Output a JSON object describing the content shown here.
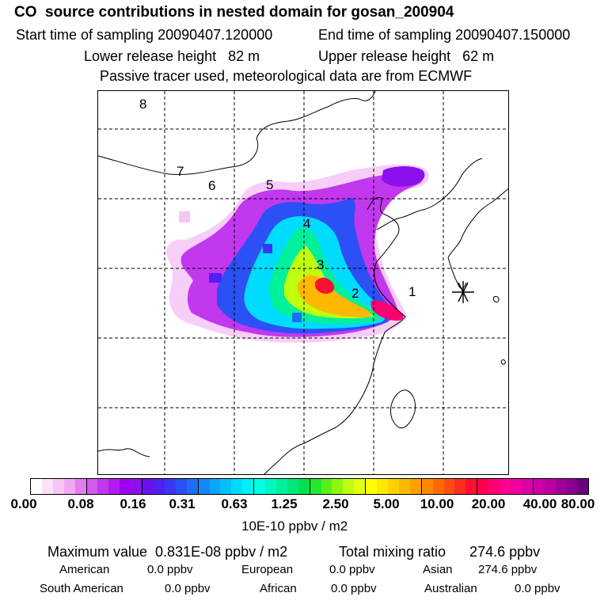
{
  "header": {
    "title": "CO  source contributions in nested domain for gosan_200904",
    "start_time": "Start time of sampling 20090407.120000",
    "end_time": "End time of sampling 20090407.150000",
    "lower_release": "Lower release height   82 m",
    "upper_release": "Upper release height   62 m",
    "passive_note": "Passive tracer used, meteorological data are from ECMWF"
  },
  "map": {
    "region_labels": [
      "1",
      "2",
      "3",
      "4",
      "5",
      "6",
      "7",
      "8"
    ],
    "receptor_marker": "asterisk-receptor-icon"
  },
  "colorbar": {
    "tick_labels": [
      "0.00",
      "0.08",
      "0.16",
      "0.31",
      "0.63",
      "1.25",
      "2.50",
      "5.00",
      "10.00",
      "20.00",
      "40.00",
      "80.00"
    ],
    "colors": [
      "#ffffff",
      "#fbe2fb",
      "#f6c6f6",
      "#f0a8f2",
      "#e27ef0",
      "#d25aee",
      "#c238ee",
      "#b31cf0",
      "#a000f2",
      "#8a10ee",
      "#6a10f0",
      "#5020f2",
      "#3838f4",
      "#2a50f6",
      "#1e6cf8",
      "#1488fa",
      "#0ca4fc",
      "#06c0fe",
      "#00dcff",
      "#00f0f6",
      "#00ffe2",
      "#00f8c0",
      "#00f09c",
      "#00e878",
      "#00e054",
      "#24e830",
      "#58f018",
      "#8cf810",
      "#c0ff10",
      "#e4ff10",
      "#ffff00",
      "#ffe800",
      "#ffd000",
      "#ffb800",
      "#ffa000",
      "#ff8800",
      "#ff6a00",
      "#ff4c10",
      "#ff2e20",
      "#ff1030",
      "#ff0050",
      "#ff0070",
      "#ff0090",
      "#f000a0",
      "#e000a8",
      "#cc00a8",
      "#b800a0",
      "#a00098",
      "#880090",
      "#6a0080"
    ],
    "units": "10E-10 ppbv / m2"
  },
  "summary": {
    "maximum_value": "Maximum value  0.831E-08 ppbv / m2",
    "total_mixing": "Total mixing ratio      274.6 ppbv",
    "rows": [
      [
        {
          "name": "American",
          "value": "0.0 ppbv"
        },
        {
          "name": "European",
          "value": "0.0 ppbv"
        },
        {
          "name": "Asian",
          "value": "274.6 ppbv"
        }
      ],
      [
        {
          "name": "South American",
          "value": "0.0 ppbv"
        },
        {
          "name": "African",
          "value": "0.0 ppbv"
        },
        {
          "name": "Australian",
          "value": "0.0 ppbv"
        }
      ]
    ]
  }
}
